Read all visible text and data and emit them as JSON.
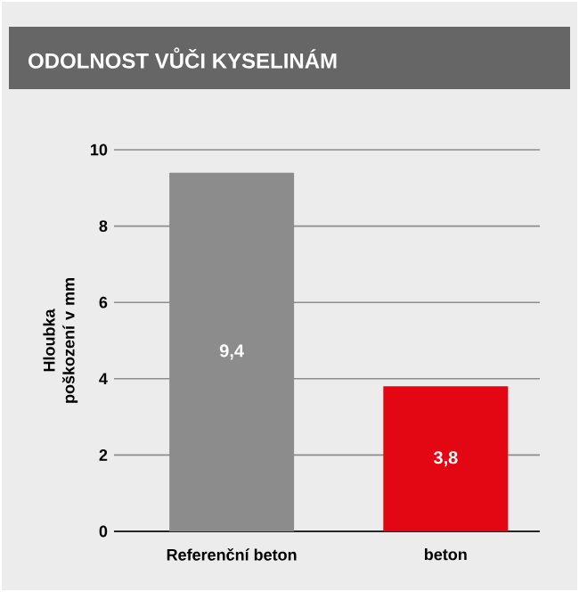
{
  "chart_data": {
    "type": "bar",
    "title": "ODOLNOST VŮČI KYSELINÁM",
    "ylabel": "Hloubka poškození v mm",
    "categories": [
      "Referenční beton",
      "beton"
    ],
    "values": [
      9.4,
      3.8
    ],
    "colors": [
      "#8c8c8c",
      "#e30613"
    ],
    "value_labels": [
      "9,4",
      "3,8"
    ],
    "ylim": [
      0,
      10
    ],
    "yticks": [
      0,
      2,
      4,
      6,
      8,
      10
    ],
    "grid": "y"
  }
}
